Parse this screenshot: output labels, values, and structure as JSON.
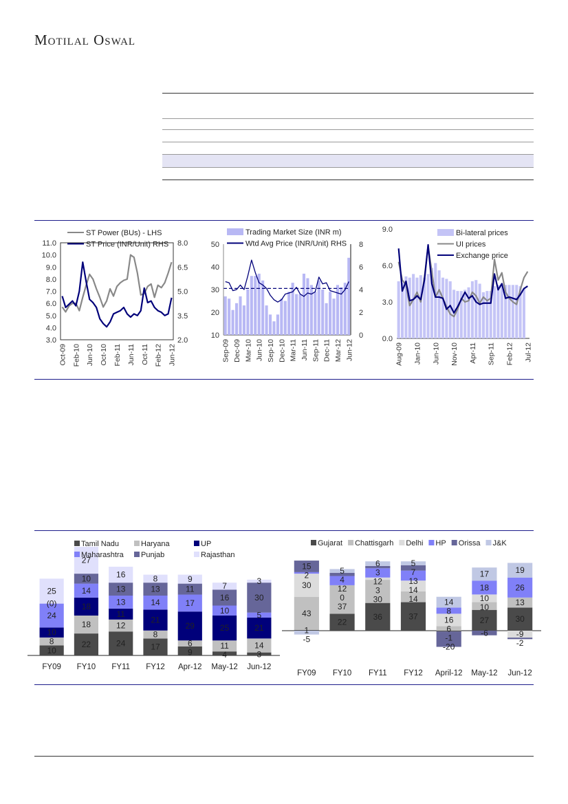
{
  "header": {
    "logo": "Motilal Oswal"
  },
  "colors": {
    "navy": "#00007a",
    "gray": "#888888",
    "lavender": "#b8b8f4",
    "rule": "#1b1b8a"
  },
  "chart_data": [
    {
      "type": "line",
      "id": "c1",
      "x": [
        "Oct-09",
        "Nov-09",
        "Dec-09",
        "Jan-10",
        "Feb-10",
        "Mar-10",
        "Apr-10",
        "May-10",
        "Jun-10",
        "Jul-10",
        "Aug-10",
        "Sep-10",
        "Oct-10",
        "Nov-10",
        "Dec-10",
        "Jan-11",
        "Feb-11",
        "Mar-11",
        "Apr-11",
        "May-11",
        "Jun-11",
        "Jul-11",
        "Aug-11",
        "Sep-11",
        "Oct-11",
        "Nov-11",
        "Dec-11",
        "Jan-12",
        "Feb-12",
        "Mar-12",
        "Apr-12",
        "May-12",
        "Jun-12"
      ],
      "xticks": [
        "Oct-09",
        "Feb-10",
        "Jun-10",
        "Oct-10",
        "Feb-11",
        "Jun-11",
        "Oct-11",
        "Feb-12",
        "Jun-12"
      ],
      "yleft": {
        "ticks": [
          "3.0",
          "4.0",
          "5.0",
          "6.0",
          "7.0",
          "8.0",
          "9.0",
          "10.0",
          "11.0"
        ],
        "range": [
          3,
          11
        ]
      },
      "yright": {
        "ticks": [
          "2.0",
          "3.5",
          "5.0",
          "6.5",
          "8.0"
        ],
        "range": [
          2,
          8
        ]
      },
      "series": [
        {
          "name": "ST Power (BUs) - LHS",
          "axis": "left",
          "color": "#888888",
          "values": [
            5.7,
            5.3,
            5.8,
            6.0,
            6.0,
            5.4,
            6.5,
            7.5,
            8.4,
            8.0,
            7.2,
            6.5,
            5.7,
            6.2,
            7.2,
            6.6,
            7.4,
            7.7,
            7.9,
            8.0,
            10.0,
            9.8,
            8.5,
            6.7,
            6.8,
            7.4,
            7.6,
            6.5,
            7.5,
            7.3,
            7.7,
            8.5,
            9.4
          ]
        },
        {
          "name": "ST Price (INR/Unit) RHS",
          "axis": "right",
          "color": "#00007a",
          "values": [
            4.7,
            4.0,
            4.2,
            4.4,
            4.1,
            5.0,
            6.8,
            5.6,
            4.5,
            4.3,
            4.0,
            3.3,
            3.0,
            2.8,
            3.1,
            3.6,
            3.7,
            3.8,
            4.0,
            3.6,
            3.4,
            3.6,
            3.5,
            3.8,
            5.2,
            4.3,
            4.4,
            4.0,
            3.8,
            3.7,
            3.5,
            3.6,
            4.6
          ]
        }
      ]
    },
    {
      "type": "bar+line",
      "id": "c2",
      "x": [
        "Sep-09",
        "Oct-09",
        "Nov-09",
        "Dec-09",
        "Jan-10",
        "Feb-10",
        "Mar-10",
        "Apr-10",
        "May-10",
        "Jun-10",
        "Jul-10",
        "Aug-10",
        "Sep-10",
        "Oct-10",
        "Nov-10",
        "Dec-10",
        "Jan-11",
        "Feb-11",
        "Mar-11",
        "Apr-11",
        "May-11",
        "Jun-11",
        "Jul-11",
        "Aug-11",
        "Sep-11",
        "Oct-11",
        "Nov-11",
        "Dec-11",
        "Jan-12",
        "Feb-12",
        "Mar-12",
        "Apr-12",
        "May-12",
        "Jun-12"
      ],
      "xticks": [
        "Sep-09",
        "Dec-09",
        "Mar-10",
        "Jun-10",
        "Sep-10",
        "Dec-10",
        "Mar-11",
        "Jun-11",
        "Sep-11",
        "Dec-11",
        "Mar-12",
        "Jun-12"
      ],
      "yleft": {
        "ticks": [
          "10",
          "20",
          "30",
          "40",
          "50"
        ],
        "range": [
          10,
          50
        ]
      },
      "yright": {
        "ticks": [
          "0",
          "2",
          "4",
          "6",
          "8"
        ],
        "range": [
          0,
          8
        ]
      },
      "average_line": 4.1,
      "series": [
        {
          "name": "Trading Market Size (INR m)",
          "kind": "bar",
          "axis": "left",
          "color": "#b8b8f4",
          "values": [
            27,
            26,
            21,
            24,
            27,
            23,
            30,
            36,
            36,
            37,
            34,
            23,
            19,
            16,
            19,
            26,
            25,
            29,
            33,
            28,
            28,
            37,
            35,
            32,
            29,
            34,
            30,
            24,
            29,
            26,
            32,
            31,
            33,
            44
          ]
        },
        {
          "name": "Wtd Avg Price (INR/Unit) RHS",
          "kind": "line",
          "axis": "right",
          "color": "#00007a",
          "values": [
            4.7,
            4.6,
            3.9,
            4.0,
            4.4,
            4.0,
            5.2,
            6.6,
            5.5,
            4.6,
            4.4,
            4.1,
            3.5,
            3.1,
            2.9,
            3.1,
            3.6,
            3.7,
            3.8,
            4.2,
            3.6,
            3.4,
            3.7,
            3.6,
            3.8,
            5.1,
            4.5,
            4.6,
            3.9,
            3.8,
            3.7,
            3.6,
            4.0,
            4.7
          ]
        }
      ]
    },
    {
      "type": "bar+line",
      "id": "c3",
      "x": [
        "Aug-09",
        "Sep-09",
        "Oct-09",
        "Nov-09",
        "Dec-09",
        "Jan-10",
        "Feb-10",
        "Mar-10",
        "Apr-10",
        "May-10",
        "Jun-10",
        "Jul-10",
        "Aug-10",
        "Sep-10",
        "Oct-10",
        "Nov-10",
        "Dec-10",
        "Jan-11",
        "Feb-11",
        "Mar-11",
        "Apr-11",
        "May-11",
        "Jun-11",
        "Jul-11",
        "Aug-11",
        "Sep-11",
        "Oct-11",
        "Nov-11",
        "Dec-11",
        "Jan-12",
        "Feb-12",
        "Mar-12",
        "Apr-12",
        "May-12",
        "Jun-12",
        "Jul-12"
      ],
      "xticks": [
        "Aug-09",
        "Jan-10",
        "Jun-10",
        "Nov-10",
        "Apr-11",
        "Sep-11",
        "Feb-12",
        "Jul-12"
      ],
      "yleft": {
        "ticks": [
          "0.0",
          "3.0",
          "6.0",
          "9.0"
        ],
        "range": [
          0,
          9
        ]
      },
      "series": [
        {
          "name": "Bi-lateral prices",
          "kind": "bar",
          "axis": "left",
          "color": "#c4c4f6",
          "values": [
            4.7,
            4.6,
            5.1,
            5.0,
            5.3,
            5.0,
            5.2,
            5.0,
            5.3,
            5.8,
            6.2,
            5.6,
            5.0,
            4.9,
            4.7,
            4.0,
            3.9,
            3.9,
            4.0,
            4.2,
            4.7,
            4.8,
            4.5,
            3.8,
            3.9,
            3.9,
            4.3,
            4.4,
            4.5,
            4.4,
            4.4,
            4.4,
            4.4,
            4.3,
            4.1,
            null
          ]
        },
        {
          "name": "UI prices",
          "kind": "line",
          "axis": "left",
          "color": "#888888",
          "values": [
            6.3,
            4.8,
            4.4,
            2.7,
            3.2,
            3.8,
            3.0,
            5.0,
            7.6,
            5.5,
            3.4,
            4.0,
            3.3,
            2.6,
            2.0,
            1.8,
            2.4,
            3.3,
            3.0,
            3.1,
            3.8,
            3.5,
            2.9,
            3.4,
            3.1,
            3.3,
            6.5,
            4.8,
            5.4,
            3.8,
            3.3,
            3.0,
            2.8,
            4.0,
            5.0,
            5.5
          ]
        },
        {
          "name": "Exchange price",
          "kind": "line",
          "axis": "left",
          "color": "#00007a",
          "values": [
            7.4,
            3.9,
            4.7,
            3.1,
            3.2,
            3.5,
            3.2,
            4.8,
            7.7,
            4.5,
            3.4,
            3.4,
            3.3,
            2.4,
            2.7,
            2.1,
            2.6,
            3.2,
            3.8,
            3.3,
            3.5,
            3.0,
            2.8,
            2.9,
            2.9,
            2.9,
            5.3,
            4.0,
            4.5,
            3.3,
            3.4,
            3.3,
            3.2,
            3.6,
            4.1,
            4.3
          ]
        }
      ]
    },
    {
      "type": "stacked-bar",
      "id": "c4",
      "categories": [
        "FY09",
        "FY10",
        "FY11",
        "FY12",
        "Apr-12",
        "May-12",
        "Jun-12"
      ],
      "series": [
        {
          "name": "Tamil Nadu",
          "color": "#4a4a4a",
          "values": [
            10,
            22,
            24,
            17,
            9,
            4,
            3
          ]
        },
        {
          "name": "Haryana",
          "color": "#c0c0c0",
          "values": [
            8,
            18,
            12,
            8,
            6,
            11,
            14
          ]
        },
        {
          "name": "UP",
          "color": "#00007a",
          "values": [
            10,
            18,
            11,
            21,
            29,
            25,
            21
          ]
        },
        {
          "name": "Maharashtra",
          "color": "#8080f8",
          "values": [
            24,
            14,
            13,
            14,
            17,
            10,
            5
          ]
        },
        {
          "name": "Punjab",
          "color": "#666699",
          "values": [
            0,
            10,
            13,
            13,
            11,
            16,
            30
          ]
        },
        {
          "name": "Rajasthan",
          "color": "#e0e0fc",
          "values": [
            25,
            27,
            16,
            8,
            9,
            7,
            3
          ]
        }
      ],
      "labels": [
        [
          "10",
          "8",
          "10",
          "24",
          "(0)",
          "25"
        ],
        [
          "22",
          "18",
          "18",
          "14",
          "10",
          "27"
        ],
        [
          "24",
          "12",
          "11",
          "13",
          "13",
          "16"
        ],
        [
          "17",
          "8",
          "21",
          "14",
          "13",
          "8"
        ],
        [
          "9",
          "6",
          "29",
          "17",
          "11",
          "9"
        ],
        [
          "4",
          "11",
          "25",
          "10",
          "16",
          "7"
        ],
        [
          "3",
          "14",
          "21",
          "5",
          "30",
          "3"
        ]
      ]
    },
    {
      "type": "stacked-bar",
      "id": "c5",
      "categories": [
        "FY09",
        "FY10",
        "FY11",
        "FY12",
        "April-12",
        "May-12",
        "Jun-12"
      ],
      "series": [
        {
          "name": "Gujarat",
          "color": "#4a4a4a",
          "values": [
            1,
            22,
            36,
            37,
            -1,
            27,
            30
          ]
        },
        {
          "name": "Chattisgarh",
          "color": "#c0c0c0",
          "values": [
            43,
            37,
            30,
            14,
            6,
            10,
            13
          ]
        },
        {
          "name": "Delhi",
          "color": "#dcdcdc",
          "values": [
            30,
            0,
            3,
            14,
            16,
            10,
            -9
          ]
        },
        {
          "name": "HP",
          "color": "#8080f8",
          "values": [
            2,
            12,
            12,
            13,
            8,
            18,
            26
          ]
        },
        {
          "name": "Orissa",
          "color": "#666699",
          "values": [
            15,
            4,
            3,
            7,
            -20,
            -6,
            -2
          ]
        },
        {
          "name": "J&K",
          "color": "#c0c8e4",
          "values": [
            -5,
            5,
            6,
            5,
            14,
            17,
            19
          ]
        }
      ]
    }
  ]
}
